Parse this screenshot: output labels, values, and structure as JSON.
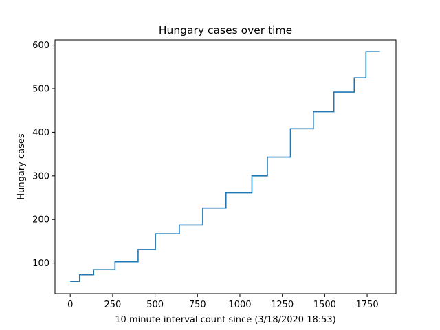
{
  "chart_data": {
    "type": "line",
    "step": "post",
    "title": "Hungary cases over time",
    "xlabel": "10 minute interval count since (3/18/2020 18:53)",
    "ylabel": "Hungary cases",
    "xlim": [
      -90,
      1920
    ],
    "ylim": [
      30,
      612
    ],
    "xticks": [
      0,
      250,
      500,
      750,
      1000,
      1250,
      1500,
      1750
    ],
    "yticks": [
      100,
      200,
      300,
      400,
      500,
      600
    ],
    "grid": false,
    "line_color": "#1f77b4",
    "series": [
      {
        "x": [
          0,
          55,
          138,
          264,
          400,
          502,
          643,
          781,
          918,
          1071,
          1162,
          1298,
          1433,
          1554,
          1674,
          1743,
          1825
        ],
        "values": [
          58,
          73,
          85,
          103,
          131,
          167,
          187,
          226,
          261,
          300,
          343,
          408,
          447,
          492,
          525,
          585,
          585
        ]
      }
    ]
  }
}
